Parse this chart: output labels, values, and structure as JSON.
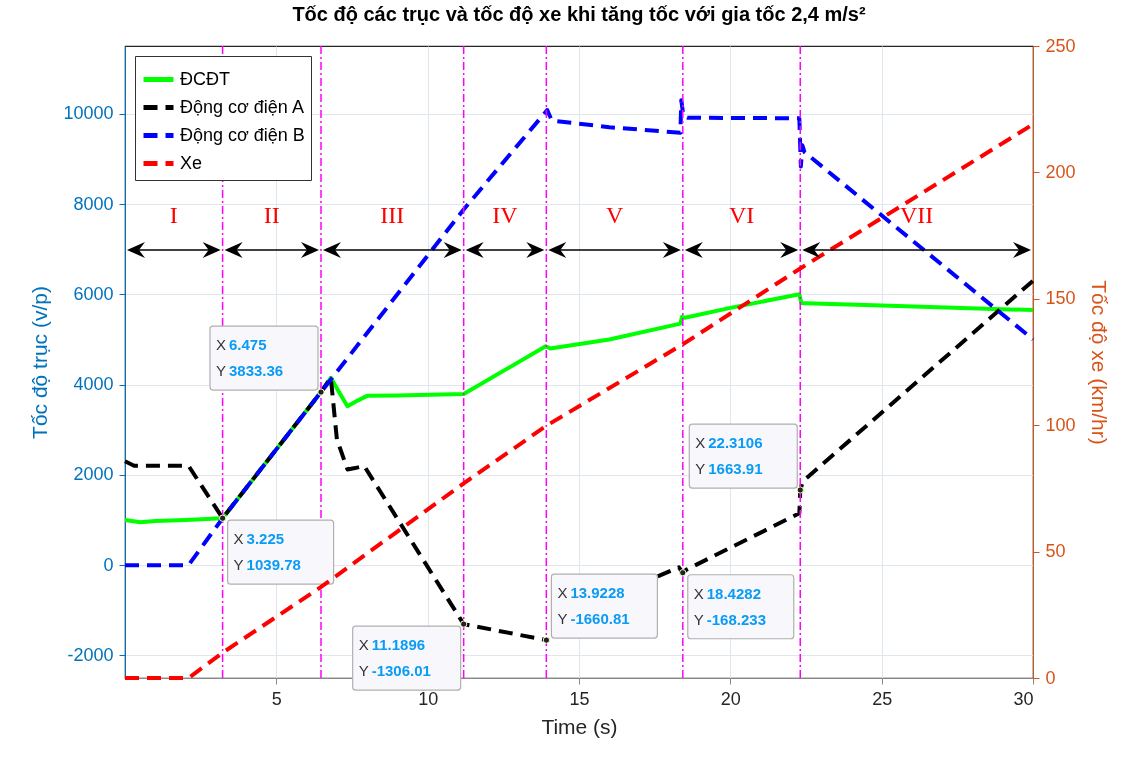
{
  "chart_data": {
    "type": "line",
    "title": "Tốc độ các trục và tốc độ xe khi tăng tốc với gia tốc 2,4 m/s²",
    "xlabel": "Time (s)",
    "ylabel": "Tốc độ trục (v/p)",
    "y2label": "Tốc độ xe (km/hr)",
    "xlim": [
      0,
      30
    ],
    "xticks": [
      5,
      10,
      15,
      20,
      25,
      30
    ],
    "ylim": [
      -2500,
      11500
    ],
    "yticks": [
      -2000,
      0,
      2000,
      4000,
      6000,
      8000,
      10000
    ],
    "y2lim": [
      0,
      250
    ],
    "y2ticks": [
      0,
      50,
      100,
      150,
      200,
      250
    ],
    "grid": true,
    "legend": "top left",
    "series": [
      {
        "name": "ĐCĐT",
        "color": "#00ff00",
        "line_style": "solid",
        "x": [
          0,
          0.5,
          1,
          2,
          3.225,
          6.475,
          6.8,
          7.1,
          7.35,
          7.7,
          8,
          9,
          11.19,
          13.9,
          14.05,
          16,
          18.35,
          18.4,
          18.5,
          20,
          22.28,
          22.35,
          22.5,
          25,
          30
        ],
        "values": [
          1000,
          950,
          980,
          1000,
          1039.78,
          3833.36,
          4150,
          3800,
          3520,
          3650,
          3750,
          3760,
          3790,
          4850,
          4800,
          5000,
          5350,
          5500,
          5480,
          5700,
          6000,
          5800,
          5800,
          5750,
          5650
        ]
      },
      {
        "name": "Động cơ điện A",
        "color": "#000000",
        "line_style": "dashed",
        "x": [
          0,
          0.3,
          0.8,
          2.1,
          3.225,
          6.475,
          6.8,
          7.0,
          7.35,
          7.6,
          7.9,
          11.1896,
          13.9228,
          14.0,
          17.6,
          18.3,
          18.4282,
          18.55,
          22.28,
          22.3106,
          22.4,
          30
        ],
        "values": [
          2300,
          2200,
          2200,
          2200,
          1039.78,
          3833.36,
          4150,
          2790,
          2120,
          2150,
          2200,
          -1306.01,
          -1660.81,
          null,
          -250,
          -50,
          -168.233,
          -100,
          1150,
          1663.91,
          1860,
          6300
        ]
      },
      {
        "name": "Động cơ điện B",
        "color": "#0000ff",
        "line_style": "dashed",
        "x": [
          0,
          2.1,
          3.225,
          6.475,
          11.19,
          13.95,
          14.1,
          16,
          18.35,
          18.38,
          18.45,
          18.6,
          22.28,
          22.33,
          22.38,
          22.45,
          30
        ],
        "values": [
          0,
          0,
          1039.78,
          3833.36,
          7880,
          10080,
          9850,
          9700,
          9580,
          10300,
          9950,
          9910,
          9900,
          8830,
          9300,
          9150,
          5000
        ]
      },
      {
        "name": "Xe",
        "color": "#ff0000",
        "line_style": "dashed",
        "axis": "y2",
        "x": [
          0,
          2.1,
          3.225,
          6.475,
          11.19,
          13.95,
          18.43,
          22.31,
          30
        ],
        "values": [
          0,
          0,
          10,
          36,
          77,
          100,
          132,
          162,
          219
        ]
      }
    ],
    "ref_lines": [
      {
        "axis": "x",
        "value": 3.225,
        "color": "#ff00ff",
        "line_style": "dashed"
      },
      {
        "axis": "x",
        "value": 6.475,
        "color": "#ff00ff",
        "line_style": "dashed"
      },
      {
        "axis": "x",
        "value": 11.19,
        "color": "#ff00ff",
        "line_style": "dashed"
      },
      {
        "axis": "x",
        "value": 13.92,
        "color": "#ff00ff",
        "line_style": "dashed"
      },
      {
        "axis": "x",
        "value": 18.43,
        "color": "#ff00ff",
        "line_style": "dashed"
      },
      {
        "axis": "x",
        "value": 22.31,
        "color": "#ff00ff",
        "line_style": "dashed"
      }
    ],
    "annotations": [
      "I",
      "II",
      "III",
      "IV",
      "V",
      "VI",
      "VII",
      {
        "text": "X 3.225\nY 1039.78",
        "x": 3.225,
        "y": 1039.78
      },
      {
        "text": "X 6.475\nY 3833.36",
        "x": 6.475,
        "y": 3833.36
      },
      {
        "text": "X 11.1896\nY -1306.01",
        "x": 11.1896,
        "y": -1306.01
      },
      {
        "text": "X 13.9228\nY -1660.81",
        "x": 13.9228,
        "y": -1660.81
      },
      {
        "text": "X 18.4282\nY -168.233",
        "x": 18.4282,
        "y": -168.233
      },
      {
        "text": "X 22.3106\nY 1663.91",
        "x": 22.3106,
        "y": 1663.91
      }
    ]
  }
}
